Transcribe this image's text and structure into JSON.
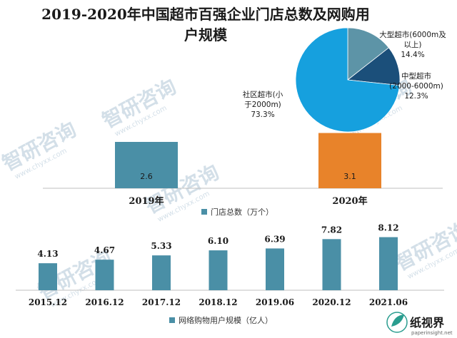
{
  "title_lines": [
    "2019-2020年中国超市百强企业门店总数及网购用",
    "户规模"
  ],
  "colors": {
    "steel_bar": "#4a8fa6",
    "orange_bar": "#e8832a",
    "pie_large": "#5d94a7",
    "pie_medium": "#1b4f7a",
    "pie_community": "#16a0de",
    "axis": "#bfbfbf",
    "watermark": "#cfdce6",
    "brand": "#2a9d8f"
  },
  "watermark_text": "智研咨询",
  "watermark_sub": "www.chyxx.com",
  "brand": {
    "name": "纸视界",
    "url": "paperinsight.net",
    "icon": "leaf-icon"
  },
  "chart_data": [
    {
      "type": "bar",
      "categories": [
        "2019年",
        "2020年"
      ],
      "values": [
        2.6,
        3.1
      ],
      "data_labels": [
        "2.6",
        "3.1"
      ],
      "legend": "门店总数（万个）",
      "bar_colors": [
        "#4a8fa6",
        "#e8832a"
      ],
      "ylim": [
        0,
        3.6
      ]
    },
    {
      "type": "pie",
      "slices": [
        {
          "label_lines": [
            "大型超市(6000m及",
            "以上)"
          ],
          "percent": "14.4%",
          "value": 14.4,
          "color": "#5d94a7"
        },
        {
          "label_lines": [
            "中型超市",
            "(2000-6000m)"
          ],
          "percent": "12.3%",
          "value": 12.3,
          "color": "#1b4f7a"
        },
        {
          "label_lines": [
            "社区超市(小",
            "于2000m)"
          ],
          "percent": "73.3%",
          "value": 73.3,
          "color": "#16a0de"
        }
      ]
    },
    {
      "type": "bar",
      "categories": [
        "2015.12",
        "2016.12",
        "2017.12",
        "2018.12",
        "2019.06",
        "2020.12",
        "2021.06"
      ],
      "values": [
        4.13,
        4.67,
        5.33,
        6.1,
        6.39,
        7.82,
        8.12
      ],
      "data_labels": [
        "4.13",
        "4.67",
        "5.33",
        "6.10",
        "6.39",
        "7.82",
        "8.12"
      ],
      "legend": "网络购物用户规模（亿人）",
      "ylim": [
        0,
        12
      ]
    }
  ]
}
